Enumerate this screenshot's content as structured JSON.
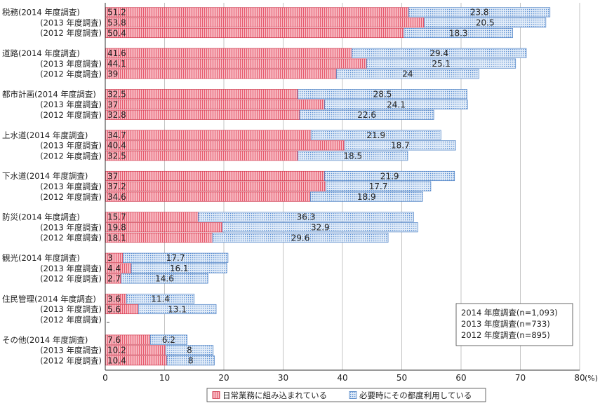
{
  "chart_data": {
    "type": "bar",
    "orientation": "horizontal",
    "stacked": true,
    "unit_label": "(%)",
    "xlim": [
      0,
      80
    ],
    "xticks": [
      0,
      10,
      20,
      30,
      40,
      50,
      60,
      70,
      80
    ],
    "grid": true,
    "legend_position": "bottom",
    "series": [
      {
        "name": "日常業務に組み込まれている",
        "color": "#f08a96",
        "pattern": "vertical-lines"
      },
      {
        "name": "必要時にその都度利用している",
        "color": "#8fb4e3",
        "pattern": "dots"
      }
    ],
    "groups": [
      {
        "category": "税務",
        "rows": [
          {
            "label": "(2014 年度調査)",
            "values": [
              51.2,
              23.8
            ]
          },
          {
            "label": "(2013 年度調査)",
            "values": [
              53.8,
              20.5
            ]
          },
          {
            "label": "(2012 年度調査)",
            "values": [
              50.4,
              18.3
            ]
          }
        ]
      },
      {
        "category": "道路",
        "rows": [
          {
            "label": "(2014 年度調査)",
            "values": [
              41.6,
              29.4
            ]
          },
          {
            "label": "(2013 年度調査)",
            "values": [
              44.1,
              25.1
            ]
          },
          {
            "label": "(2012 年度調査)",
            "values": [
              39.0,
              24.0
            ]
          }
        ]
      },
      {
        "category": "都市計画",
        "rows": [
          {
            "label": "(2014 年度調査)",
            "values": [
              32.5,
              28.5
            ]
          },
          {
            "label": "(2013 年度調査)",
            "values": [
              37.0,
              24.1
            ]
          },
          {
            "label": "(2012 年度調査)",
            "values": [
              32.8,
              22.6
            ]
          }
        ]
      },
      {
        "category": "上水道",
        "rows": [
          {
            "label": "(2014 年度調査)",
            "values": [
              34.7,
              21.9
            ]
          },
          {
            "label": "(2013 年度調査)",
            "values": [
              40.4,
              18.7
            ]
          },
          {
            "label": "(2012 年度調査)",
            "values": [
              32.5,
              18.5
            ]
          }
        ]
      },
      {
        "category": "下水道",
        "rows": [
          {
            "label": "(2014 年度調査)",
            "values": [
              37.0,
              21.9
            ]
          },
          {
            "label": "(2013 年度調査)",
            "values": [
              37.2,
              17.7
            ]
          },
          {
            "label": "(2012 年度調査)",
            "values": [
              34.6,
              18.9
            ]
          }
        ]
      },
      {
        "category": "防災",
        "rows": [
          {
            "label": "(2014 年度調査)",
            "values": [
              15.7,
              36.3
            ]
          },
          {
            "label": "(2013 年度調査)",
            "values": [
              19.8,
              32.9
            ]
          },
          {
            "label": "(2012 年度調査)",
            "values": [
              18.1,
              29.6
            ]
          }
        ]
      },
      {
        "category": "観光",
        "rows": [
          {
            "label": "(2014 年度調査)",
            "values": [
              3.0,
              17.7
            ]
          },
          {
            "label": "(2013 年度調査)",
            "values": [
              4.4,
              16.1
            ]
          },
          {
            "label": "(2012 年度調査)",
            "values": [
              2.7,
              14.6
            ]
          }
        ]
      },
      {
        "category": "住民管理",
        "rows": [
          {
            "label": "(2014 年度調査)",
            "values": [
              3.6,
              11.4
            ]
          },
          {
            "label": "(2013 年度調査)",
            "values": [
              5.6,
              13.1
            ]
          },
          {
            "label": "(2012 年度調査)",
            "values": null
          }
        ]
      },
      {
        "category": "その他",
        "rows": [
          {
            "label": "(2014 年度調査)",
            "values": [
              7.6,
              6.2
            ]
          },
          {
            "label": "(2013 年度調査)",
            "values": [
              10.2,
              8.0
            ]
          },
          {
            "label": "(2012 年度調査)",
            "values": [
              10.4,
              8.0
            ]
          }
        ]
      }
    ],
    "notes": [
      "2014 年度調査(n=1,093)",
      "2013 年度調査(n=733)",
      "2012 年度調査(n=895)"
    ]
  }
}
